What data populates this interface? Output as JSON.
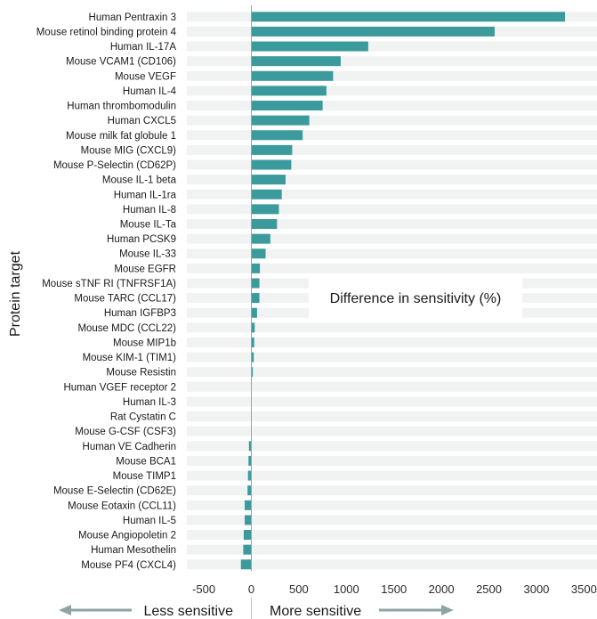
{
  "chart_data": {
    "type": "bar",
    "orientation": "horizontal",
    "ylabel": "Protein target",
    "annotation": "Difference in sensitivity (%)",
    "direction_labels": {
      "left": "Less sensitive",
      "right": "More sensitive"
    },
    "xlim": [
      -600,
      3500
    ],
    "xticks": [
      -500,
      0,
      500,
      1000,
      1500,
      2000,
      2500,
      3000,
      3500
    ],
    "bar_color": "#3a9a9c",
    "background_band_color": "#f1f2f2",
    "categories": [
      "Human Pentraxin 3",
      "Mouse retinol binding protein 4",
      "Human IL-17A",
      "Mouse VCAM1 (CD106)",
      "Mouse VEGF",
      "Human IL-4",
      "Human thrombomodulin",
      "Human CXCL5",
      "Mouse milk fat globule 1",
      "Mouse MIG (CXCL9)",
      "Mouse P-Selectin (CD62P)",
      "Mouse IL-1 beta",
      "Human IL-1ra",
      "Human IL-8",
      "Mouse IL-Ta",
      "Human PCSK9",
      "Mouse IL-33",
      "Mouse EGFR",
      "Mouse sTNF RI (TNFRSF1A)",
      "Mouse TARC (CCL17)",
      "Human IGFBP3",
      "Mouse MDC (CCL22)",
      "Mouse MIP1b",
      "Mouse KIM-1 (TIM1)",
      "Mouse Resistin",
      "Human VGEF receptor 2",
      "Human IL-3",
      "Rat Cystatin C",
      "Mouse G-CSF (CSF3)",
      "Human VE Cadherin",
      "Mouse BCA1",
      "Mouse TIMP1",
      "Mouse E-Selectin (CD62E)",
      "Mouse Eotaxin (CCL11)",
      "Human IL-5",
      "Mouse Angiopoletin 2",
      "Human Mesothelin",
      "Mouse PF4 (CXCL4)"
    ],
    "values": [
      3300,
      2560,
      1230,
      940,
      860,
      790,
      750,
      610,
      540,
      430,
      420,
      360,
      320,
      290,
      270,
      200,
      150,
      90,
      85,
      85,
      60,
      35,
      30,
      25,
      15,
      0,
      0,
      0,
      0,
      -25,
      -30,
      -35,
      -40,
      -70,
      -70,
      -80,
      -85,
      -110
    ]
  }
}
